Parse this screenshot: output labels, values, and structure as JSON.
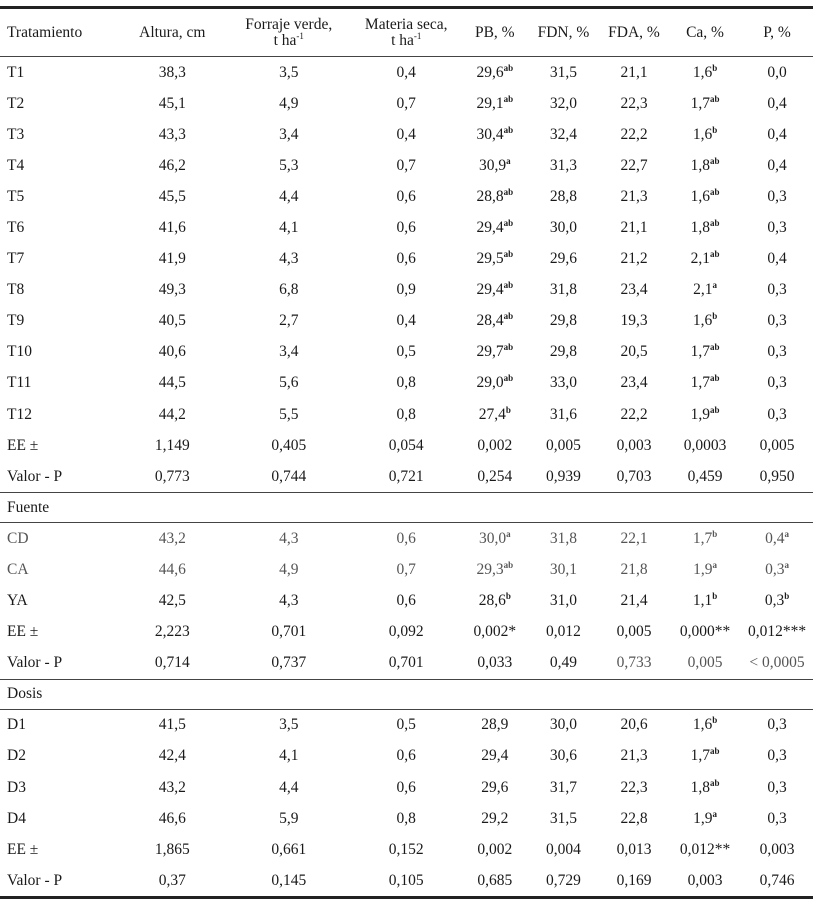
{
  "table": {
    "headers": [
      {
        "line1": "Tratamiento",
        "line2": ""
      },
      {
        "line1": "Altura, cm",
        "line2": ""
      },
      {
        "line1": "Forraje verde,",
        "line2": "t ha",
        "sup": "-1"
      },
      {
        "line1": "Materia seca,",
        "line2": "t ha",
        "sup": "-1"
      },
      {
        "line1": "PB, %",
        "line2": ""
      },
      {
        "line1": "FDN, %",
        "line2": ""
      },
      {
        "line1": "FDA, %",
        "line2": ""
      },
      {
        "line1": "Ca, %",
        "line2": ""
      },
      {
        "line1": "P, %",
        "line2": ""
      }
    ],
    "tratamiento_rows": [
      {
        "label": "T1",
        "altura": "38,3",
        "forraje": "3,5",
        "ms": "0,4",
        "pb": "29,6",
        "pb_sup": "ab",
        "fdn": "31,5",
        "fda": "21,1",
        "ca": "1,6",
        "ca_sup": "b",
        "p": "0,0",
        "p_sup": ""
      },
      {
        "label": "T2",
        "altura": "45,1",
        "forraje": "4,9",
        "ms": "0,7",
        "pb": "29,1",
        "pb_sup": "ab",
        "fdn": "32,0",
        "fda": "22,3",
        "ca": "1,7",
        "ca_sup": "ab",
        "p": "0,4",
        "p_sup": ""
      },
      {
        "label": "T3",
        "altura": "43,3",
        "forraje": "3,4",
        "ms": "0,4",
        "pb": "30,4",
        "pb_sup": "ab",
        "fdn": "32,4",
        "fda": "22,2",
        "ca": "1,6",
        "ca_sup": "b",
        "p": "0,4",
        "p_sup": ""
      },
      {
        "label": "T4",
        "altura": "46,2",
        "forraje": "5,3",
        "ms": "0,7",
        "pb": "30,9",
        "pb_sup": "a",
        "fdn": "31,3",
        "fda": "22,7",
        "ca": "1,8",
        "ca_sup": "ab",
        "p": "0,4",
        "p_sup": ""
      },
      {
        "label": "T5",
        "altura": "45,5",
        "forraje": "4,4",
        "ms": "0,6",
        "pb": "28,8",
        "pb_sup": "ab",
        "fdn": "28,8",
        "fda": "21,3",
        "ca": "1,6",
        "ca_sup": "ab",
        "p": "0,3",
        "p_sup": ""
      },
      {
        "label": "T6",
        "altura": "41,6",
        "forraje": "4,1",
        "ms": "0,6",
        "pb": "29,4",
        "pb_sup": "ab",
        "fdn": "30,0",
        "fda": "21,1",
        "ca": "1,8",
        "ca_sup": "ab",
        "p": "0,3",
        "p_sup": ""
      },
      {
        "label": "T7",
        "altura": "41,9",
        "forraje": "4,3",
        "ms": "0,6",
        "pb": "29,5",
        "pb_sup": "ab",
        "fdn": "29,6",
        "fda": "21,2",
        "ca": "2,1",
        "ca_sup": "ab",
        "p": "0,4",
        "p_sup": ""
      },
      {
        "label": "T8",
        "altura": "49,3",
        "forraje": "6,8",
        "ms": "0,9",
        "pb": "29,4",
        "pb_sup": "ab",
        "fdn": "31,8",
        "fda": "23,4",
        "ca": "2,1",
        "ca_sup": "a",
        "p": "0,3",
        "p_sup": ""
      },
      {
        "label": "T9",
        "altura": "40,5",
        "forraje": "2,7",
        "ms": "0,4",
        "pb": "28,4",
        "pb_sup": "ab",
        "fdn": "29,8",
        "fda": "19,3",
        "ca": "1,6",
        "ca_sup": "b",
        "p": "0,3",
        "p_sup": ""
      },
      {
        "label": "T10",
        "altura": "40,6",
        "forraje": "3,4",
        "ms": "0,5",
        "pb": "29,7",
        "pb_sup": "ab",
        "fdn": "29,8",
        "fda": "20,5",
        "ca": "1,7",
        "ca_sup": "ab",
        "p": "0,3",
        "p_sup": ""
      },
      {
        "label": "T11",
        "altura": "44,5",
        "forraje": "5,6",
        "ms": "0,8",
        "pb": "29,0",
        "pb_sup": "ab",
        "fdn": "33,0",
        "fda": "23,4",
        "ca": "1,7",
        "ca_sup": "ab",
        "p": "0,3",
        "p_sup": ""
      },
      {
        "label": "T12",
        "altura": "44,2",
        "forraje": "5,5",
        "ms": "0,8",
        "pb": "27,4",
        "pb_sup": "b",
        "fdn": "31,6",
        "fda": "22,2",
        "ca": "1,9",
        "ca_sup": "ab",
        "p": "0,3",
        "p_sup": ""
      },
      {
        "label": "EE ±",
        "altura": "1,149",
        "forraje": "0,405",
        "ms": "0,054",
        "pb": "0,002",
        "pb_sup": "",
        "fdn": "0,005",
        "fda": "0,003",
        "ca": "0,0003",
        "ca_sup": "",
        "p": "0,005",
        "p_sup": ""
      },
      {
        "label": "Valor - P",
        "altura": "0,773",
        "forraje": "0,744",
        "ms": "0,721",
        "pb": "0,254",
        "pb_sup": "",
        "fdn": "0,939",
        "fda": "0,703",
        "ca": "0,459",
        "ca_sup": "",
        "p": "0,950",
        "p_sup": ""
      }
    ],
    "fuente_title": "Fuente",
    "fuente_rows": [
      {
        "label": "CD",
        "altura": "43,2",
        "forraje": "4,3",
        "ms": "0,6",
        "pb": "30,0",
        "pb_sup": "a",
        "fdn": "31,8",
        "fda": "22,1",
        "ca": "1,7",
        "ca_sup": "b",
        "p": "0,4",
        "p_sup": "a"
      },
      {
        "label": "CA",
        "altura": "44,6",
        "forraje": "4,9",
        "ms": "0,7",
        "pb": "29,3",
        "pb_sup": "ab",
        "fdn": "30,1",
        "fda": "21,8",
        "ca": "1,9",
        "ca_sup": "a",
        "p": "0,3",
        "p_sup": "a"
      },
      {
        "label": "YA",
        "altura": "42,5",
        "forraje": "4,3",
        "ms": "0,6",
        "pb": "28,6",
        "pb_sup": "b",
        "fdn": "31,0",
        "fda": "21,4",
        "ca": "1,1",
        "ca_sup": "b",
        "p": "0,3",
        "p_sup": "b"
      },
      {
        "label": "EE ±",
        "altura": "2,223",
        "forraje": "0,701",
        "ms": "0,092",
        "pb": "0,002*",
        "pb_sup": "",
        "fdn": "0,012",
        "fda": "0,005",
        "ca": "0,000**",
        "ca_sup": "",
        "p": "0,012***",
        "p_sup": ""
      },
      {
        "label": "Valor - P",
        "altura": "0,714",
        "forraje": "0,737",
        "ms": "0,701",
        "pb": "0,033",
        "pb_sup": "",
        "fdn": "0,49",
        "fda": "0,733",
        "ca": "0,005",
        "ca_sup": "",
        "p": "< 0,0005",
        "p_sup": ""
      }
    ],
    "dosis_title": "Dosis",
    "dosis_rows": [
      {
        "label": "D1",
        "altura": "41,5",
        "forraje": "3,5",
        "ms": "0,5",
        "pb": "28,9",
        "pb_sup": "",
        "fdn": "30,0",
        "fda": "20,6",
        "ca": "1,6",
        "ca_sup": "b",
        "p": "0,3",
        "p_sup": ""
      },
      {
        "label": "D2",
        "altura": "42,4",
        "forraje": "4,1",
        "ms": "0,6",
        "pb": "29,4",
        "pb_sup": "",
        "fdn": "30,6",
        "fda": "21,3",
        "ca": "1,7",
        "ca_sup": "ab",
        "p": "0,3",
        "p_sup": ""
      },
      {
        "label": "D3",
        "altura": "43,2",
        "forraje": "4,4",
        "ms": "0,6",
        "pb": "29,6",
        "pb_sup": "",
        "fdn": "31,7",
        "fda": "22,3",
        "ca": "1,8",
        "ca_sup": "ab",
        "p": "0,3",
        "p_sup": ""
      },
      {
        "label": "D4",
        "altura": "46,6",
        "forraje": "5,9",
        "ms": "0,8",
        "pb": "29,2",
        "pb_sup": "",
        "fdn": "31,5",
        "fda": "22,8",
        "ca": "1,9",
        "ca_sup": "a",
        "p": "0,3",
        "p_sup": ""
      },
      {
        "label": "EE ±",
        "altura": "1,865",
        "forraje": "0,661",
        "ms": "0,152",
        "pb": "0,002",
        "pb_sup": "",
        "fdn": "0,004",
        "fda": "0,013",
        "ca": "0,012**",
        "ca_sup": "",
        "p": "0,003",
        "p_sup": ""
      },
      {
        "label": "Valor - P",
        "altura": "0,37",
        "forraje": "0,145",
        "ms": "0,105",
        "pb": "0,685",
        "pb_sup": "",
        "fdn": "0,729",
        "fda": "0,169",
        "ca": "0,003",
        "ca_sup": "",
        "p": "0,746",
        "p_sup": ""
      }
    ]
  }
}
